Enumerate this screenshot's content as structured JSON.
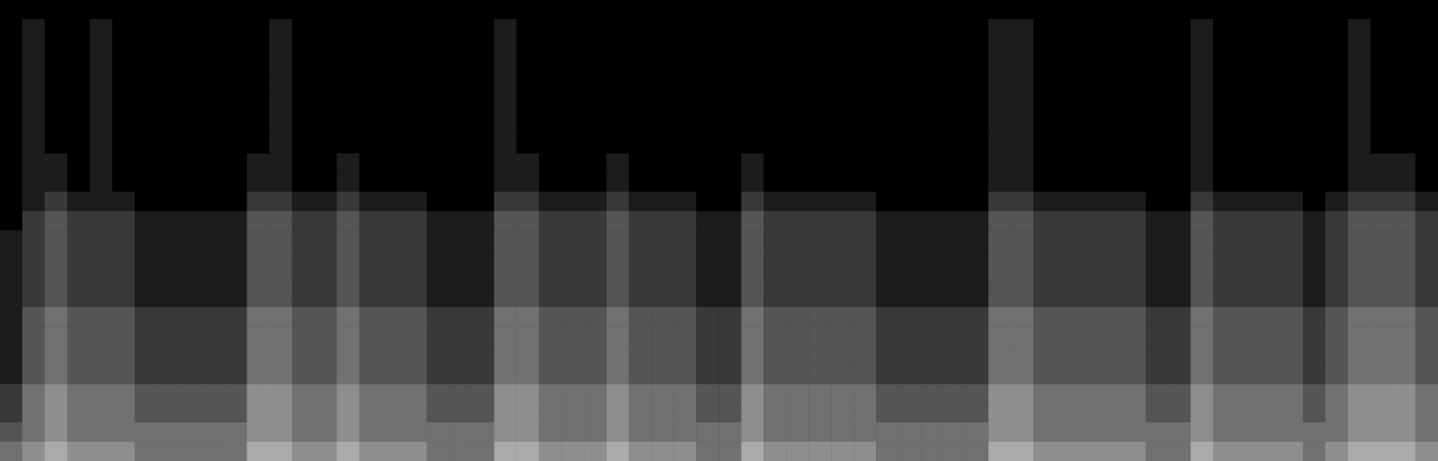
{
  "chart_data": {
    "type": "heatmap",
    "tick_labels": false,
    "value_range": [
      0,
      9
    ],
    "cells": [
      [
        0,
        0,
        0,
        0,
        0,
        0,
        0,
        0,
        0,
        0,
        0,
        0,
        0,
        0,
        0,
        0,
        0,
        0,
        0,
        0,
        0,
        0,
        0,
        0,
        0,
        0,
        0,
        0,
        0,
        0,
        0,
        0,
        0,
        0,
        0,
        0,
        0,
        0,
        0,
        0,
        0,
        0,
        0,
        0,
        0,
        0,
        0,
        0,
        0,
        0,
        0,
        0,
        0,
        0,
        0,
        0,
        0,
        0,
        0,
        0,
        0,
        0,
        0,
        0
      ],
      [
        0,
        1,
        0,
        0,
        1,
        0,
        0,
        0,
        0,
        0,
        0,
        0,
        1,
        0,
        0,
        0,
        0,
        0,
        0,
        0,
        0,
        0,
        1,
        0,
        0,
        0,
        0,
        0,
        0,
        0,
        0,
        0,
        0,
        0,
        0,
        0,
        0,
        0,
        0,
        0,
        0,
        0,
        0,
        0,
        1,
        1,
        0,
        0,
        0,
        0,
        0,
        0,
        0,
        1,
        0,
        0,
        0,
        0,
        0,
        0,
        1,
        0,
        0,
        0
      ],
      [
        0,
        1,
        0,
        0,
        1,
        0,
        0,
        0,
        0,
        0,
        0,
        0,
        1,
        0,
        0,
        0,
        0,
        0,
        0,
        0,
        0,
        0,
        1,
        0,
        0,
        0,
        0,
        0,
        0,
        0,
        0,
        0,
        0,
        0,
        0,
        0,
        0,
        0,
        0,
        0,
        0,
        0,
        0,
        0,
        1,
        1,
        0,
        0,
        0,
        0,
        0,
        0,
        0,
        1,
        0,
        0,
        0,
        0,
        0,
        0,
        1,
        0,
        0,
        0
      ],
      [
        0,
        1,
        0,
        0,
        1,
        0,
        0,
        0,
        0,
        0,
        0,
        0,
        1,
        0,
        0,
        0,
        0,
        0,
        0,
        0,
        0,
        0,
        1,
        0,
        0,
        0,
        0,
        0,
        0,
        0,
        0,
        0,
        0,
        0,
        0,
        0,
        0,
        0,
        0,
        0,
        0,
        0,
        0,
        0,
        1,
        1,
        0,
        0,
        0,
        0,
        0,
        0,
        0,
        1,
        0,
        0,
        0,
        0,
        0,
        0,
        1,
        0,
        0,
        0
      ],
      [
        0,
        1,
        0,
        0,
        1,
        0,
        0,
        0,
        0,
        0,
        0,
        0,
        1,
        0,
        0,
        0,
        0,
        0,
        0,
        0,
        0,
        0,
        1,
        0,
        0,
        0,
        0,
        0,
        0,
        0,
        0,
        0,
        0,
        0,
        0,
        0,
        0,
        0,
        0,
        0,
        0,
        0,
        0,
        0,
        1,
        1,
        0,
        0,
        0,
        0,
        0,
        0,
        0,
        1,
        0,
        0,
        0,
        0,
        0,
        0,
        1,
        0,
        0,
        0
      ],
      [
        0,
        1,
        0,
        0,
        1,
        0,
        0,
        0,
        0,
        0,
        0,
        0,
        1,
        0,
        0,
        0,
        0,
        0,
        0,
        0,
        0,
        0,
        1,
        0,
        0,
        0,
        0,
        0,
        0,
        0,
        0,
        0,
        0,
        0,
        0,
        0,
        0,
        0,
        0,
        0,
        0,
        0,
        0,
        0,
        1,
        1,
        0,
        0,
        0,
        0,
        0,
        0,
        0,
        1,
        0,
        0,
        0,
        0,
        0,
        0,
        1,
        0,
        0,
        0
      ],
      [
        0,
        1,
        0,
        0,
        1,
        0,
        0,
        0,
        0,
        0,
        0,
        0,
        1,
        0,
        0,
        0,
        0,
        0,
        0,
        0,
        0,
        0,
        1,
        0,
        0,
        0,
        0,
        0,
        0,
        0,
        0,
        0,
        0,
        0,
        0,
        0,
        0,
        0,
        0,
        0,
        0,
        0,
        0,
        0,
        1,
        1,
        0,
        0,
        0,
        0,
        0,
        0,
        0,
        1,
        0,
        0,
        0,
        0,
        0,
        0,
        1,
        0,
        0,
        0
      ],
      [
        0,
        1,
        0,
        0,
        1,
        0,
        0,
        0,
        0,
        0,
        0,
        0,
        1,
        0,
        0,
        0,
        0,
        0,
        0,
        0,
        0,
        0,
        1,
        0,
        0,
        0,
        0,
        0,
        0,
        0,
        0,
        0,
        0,
        0,
        0,
        0,
        0,
        0,
        0,
        0,
        0,
        0,
        0,
        0,
        1,
        1,
        0,
        0,
        0,
        0,
        0,
        0,
        0,
        1,
        0,
        0,
        0,
        0,
        0,
        0,
        1,
        0,
        0,
        0
      ],
      [
        0,
        1,
        1,
        0,
        1,
        0,
        0,
        0,
        0,
        0,
        0,
        1,
        1,
        0,
        0,
        1,
        0,
        0,
        0,
        0,
        0,
        0,
        1,
        1,
        0,
        0,
        0,
        1,
        0,
        0,
        0,
        0,
        0,
        1,
        0,
        0,
        0,
        0,
        0,
        0,
        0,
        0,
        0,
        0,
        1,
        1,
        0,
        0,
        0,
        0,
        0,
        0,
        0,
        1,
        0,
        0,
        0,
        0,
        0,
        0,
        1,
        1,
        1,
        0
      ],
      [
        0,
        1,
        1,
        0,
        1,
        0,
        0,
        0,
        0,
        0,
        0,
        1,
        1,
        0,
        0,
        1,
        0,
        0,
        0,
        0,
        0,
        0,
        1,
        1,
        0,
        0,
        0,
        1,
        0,
        0,
        0,
        0,
        0,
        1,
        0,
        0,
        0,
        0,
        0,
        0,
        0,
        0,
        0,
        0,
        1,
        1,
        0,
        0,
        0,
        0,
        0,
        0,
        0,
        1,
        0,
        0,
        0,
        0,
        0,
        0,
        1,
        1,
        1,
        0
      ],
      [
        0,
        1,
        2,
        1,
        1,
        1,
        0,
        0,
        0,
        0,
        0,
        2,
        2,
        1,
        1,
        2,
        1,
        1,
        1,
        0,
        0,
        0,
        2,
        2,
        1,
        1,
        1,
        2,
        1,
        1,
        1,
        0,
        0,
        2,
        1,
        1,
        1,
        1,
        1,
        0,
        0,
        0,
        0,
        0,
        2,
        2,
        1,
        1,
        1,
        1,
        1,
        0,
        0,
        2,
        1,
        1,
        1,
        1,
        0,
        1,
        2,
        2,
        2,
        1
      ],
      [
        0,
        2,
        3,
        2,
        2,
        2,
        1,
        1,
        1,
        1,
        1,
        3,
        3,
        2,
        2,
        3,
        2,
        2,
        2,
        1,
        1,
        1,
        3,
        3,
        2,
        2,
        2,
        3,
        2,
        2,
        2,
        1,
        1,
        3,
        2,
        2,
        2,
        2,
        2,
        1,
        1,
        1,
        1,
        1,
        3,
        3,
        2,
        2,
        2,
        2,
        2,
        1,
        1,
        3,
        2,
        2,
        2,
        2,
        1,
        2,
        3,
        3,
        3,
        2
      ],
      [
        1,
        2,
        3,
        2,
        2,
        2,
        1,
        1,
        1,
        1,
        1,
        3,
        3,
        2,
        2,
        3,
        2,
        2,
        2,
        1,
        1,
        1,
        3,
        3,
        2,
        2,
        2,
        3,
        2,
        2,
        2,
        1,
        1,
        3,
        2,
        2,
        2,
        2,
        2,
        1,
        1,
        1,
        1,
        1,
        3,
        3,
        2,
        2,
        2,
        2,
        2,
        1,
        1,
        3,
        2,
        2,
        2,
        2,
        1,
        2,
        3,
        3,
        3,
        2
      ],
      [
        1,
        2,
        3,
        2,
        2,
        2,
        1,
        1,
        1,
        1,
        1,
        3,
        3,
        2,
        2,
        3,
        2,
        2,
        2,
        1,
        1,
        1,
        3,
        3,
        2,
        2,
        2,
        3,
        2,
        2,
        2,
        1,
        1,
        3,
        2,
        2,
        2,
        2,
        2,
        1,
        1,
        1,
        1,
        1,
        3,
        3,
        2,
        2,
        2,
        2,
        2,
        1,
        1,
        3,
        2,
        2,
        2,
        2,
        1,
        2,
        3,
        3,
        3,
        2
      ],
      [
        1,
        2,
        3,
        2,
        2,
        2,
        1,
        1,
        1,
        1,
        1,
        3,
        3,
        2,
        2,
        3,
        2,
        2,
        2,
        1,
        1,
        1,
        3,
        3,
        2,
        2,
        2,
        3,
        2,
        2,
        2,
        1,
        1,
        3,
        2,
        2,
        2,
        2,
        2,
        1,
        1,
        1,
        1,
        1,
        3,
        3,
        2,
        2,
        2,
        2,
        2,
        1,
        1,
        3,
        2,
        2,
        2,
        2,
        1,
        2,
        3,
        3,
        3,
        2
      ],
      [
        1,
        2,
        3,
        2,
        2,
        2,
        1,
        1,
        1,
        1,
        1,
        3,
        3,
        2,
        2,
        3,
        2,
        2,
        2,
        1,
        1,
        1,
        3,
        3,
        2,
        2,
        2,
        3,
        2,
        2,
        2,
        1,
        1,
        3,
        2,
        2,
        2,
        2,
        2,
        1,
        1,
        1,
        1,
        1,
        3,
        3,
        2,
        2,
        2,
        2,
        2,
        1,
        1,
        3,
        2,
        2,
        2,
        2,
        1,
        2,
        3,
        3,
        3,
        2
      ],
      [
        1,
        3,
        4,
        3,
        3,
        3,
        2,
        2,
        2,
        2,
        2,
        4,
        4,
        3,
        3,
        4,
        3,
        3,
        3,
        2,
        2,
        2,
        4,
        4,
        3,
        3,
        3,
        4,
        3,
        3,
        3,
        2,
        2,
        4,
        3,
        3,
        3,
        3,
        3,
        2,
        2,
        2,
        2,
        2,
        4,
        4,
        3,
        3,
        3,
        3,
        3,
        2,
        2,
        4,
        3,
        3,
        3,
        3,
        2,
        3,
        4,
        4,
        4,
        3
      ],
      [
        1,
        3,
        4,
        3,
        3,
        3,
        2,
        2,
        2,
        2,
        2,
        4,
        4,
        3,
        3,
        4,
        3,
        3,
        3,
        2,
        2,
        2,
        4,
        4,
        3,
        3,
        3,
        4,
        3,
        3,
        3,
        2,
        2,
        4,
        3,
        3,
        3,
        3,
        3,
        2,
        2,
        2,
        2,
        2,
        4,
        4,
        3,
        3,
        3,
        3,
        3,
        2,
        2,
        4,
        3,
        3,
        3,
        3,
        2,
        3,
        4,
        4,
        4,
        3
      ],
      [
        1,
        3,
        4,
        3,
        3,
        3,
        2,
        2,
        2,
        2,
        2,
        4,
        4,
        3,
        3,
        4,
        3,
        3,
        3,
        2,
        2,
        2,
        4,
        4,
        3,
        3,
        3,
        4,
        3,
        3,
        3,
        2,
        2,
        4,
        3,
        3,
        3,
        3,
        3,
        2,
        2,
        2,
        2,
        2,
        4,
        4,
        3,
        3,
        3,
        3,
        3,
        2,
        2,
        4,
        3,
        3,
        3,
        3,
        2,
        3,
        4,
        4,
        4,
        3
      ],
      [
        1,
        3,
        4,
        3,
        3,
        3,
        2,
        2,
        2,
        2,
        2,
        4,
        4,
        3,
        3,
        4,
        3,
        3,
        3,
        2,
        2,
        2,
        4,
        4,
        3,
        3,
        3,
        4,
        3,
        3,
        3,
        2,
        2,
        4,
        3,
        3,
        3,
        3,
        3,
        2,
        2,
        2,
        2,
        2,
        4,
        4,
        3,
        3,
        3,
        3,
        3,
        2,
        2,
        4,
        3,
        3,
        3,
        3,
        2,
        3,
        4,
        4,
        4,
        3
      ],
      [
        2,
        4,
        5,
        4,
        4,
        4,
        3,
        3,
        3,
        3,
        3,
        5,
        5,
        4,
        4,
        5,
        4,
        4,
        4,
        3,
        3,
        3,
        5,
        5,
        4,
        4,
        4,
        5,
        4,
        4,
        4,
        3,
        3,
        5,
        4,
        4,
        4,
        4,
        4,
        3,
        3,
        3,
        3,
        3,
        5,
        5,
        4,
        4,
        4,
        4,
        4,
        3,
        3,
        5,
        4,
        4,
        4,
        4,
        3,
        4,
        5,
        5,
        5,
        4
      ],
      [
        2,
        4,
        5,
        4,
        4,
        4,
        3,
        3,
        3,
        3,
        3,
        5,
        5,
        4,
        4,
        5,
        4,
        4,
        4,
        3,
        3,
        3,
        5,
        5,
        4,
        4,
        4,
        5,
        4,
        4,
        4,
        3,
        3,
        5,
        4,
        4,
        4,
        4,
        4,
        3,
        3,
        3,
        3,
        3,
        5,
        5,
        4,
        4,
        4,
        4,
        4,
        3,
        3,
        5,
        4,
        4,
        4,
        4,
        3,
        4,
        5,
        5,
        5,
        4
      ],
      [
        3,
        4,
        5,
        4,
        4,
        4,
        4,
        4,
        4,
        4,
        4,
        5,
        5,
        4,
        4,
        5,
        4,
        4,
        4,
        4,
        4,
        4,
        5,
        5,
        4,
        4,
        4,
        5,
        4,
        4,
        4,
        4,
        4,
        5,
        4,
        4,
        4,
        4,
        4,
        4,
        4,
        4,
        4,
        4,
        5,
        5,
        4,
        4,
        4,
        4,
        4,
        4,
        4,
        5,
        4,
        4,
        4,
        4,
        4,
        4,
        5,
        5,
        5,
        4
      ],
      [
        4,
        5,
        6,
        5,
        5,
        5,
        4,
        4,
        4,
        4,
        4,
        6,
        6,
        5,
        5,
        6,
        5,
        5,
        5,
        4,
        4,
        4,
        6,
        6,
        5,
        5,
        5,
        6,
        5,
        5,
        5,
        4,
        4,
        6,
        5,
        5,
        5,
        5,
        5,
        4,
        4,
        4,
        4,
        4,
        6,
        6,
        5,
        5,
        5,
        5,
        5,
        4,
        4,
        6,
        5,
        5,
        5,
        5,
        4,
        5,
        6,
        6,
        6,
        5
      ]
    ]
  }
}
